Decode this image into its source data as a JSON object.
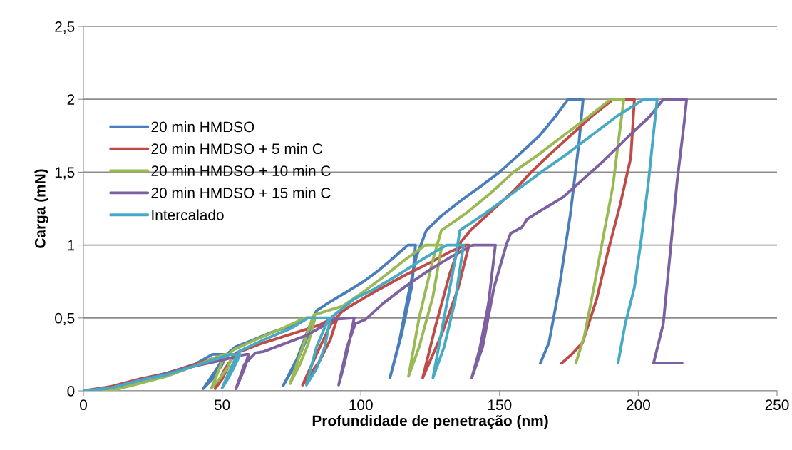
{
  "chart_data": {
    "type": "line",
    "xlabel": "Profundidade de penetração (nm)",
    "ylabel": "Carga (mN)",
    "xlim": [
      0,
      250
    ],
    "xticks": [
      0,
      50,
      100,
      150,
      200,
      250
    ],
    "ylim": [
      0,
      2.5
    ],
    "yticks": [
      0,
      {
        "value": 0.5,
        "label": "0,5"
      },
      1,
      {
        "value": 1.5,
        "label": "1,5"
      },
      2,
      {
        "value": 2.5,
        "label": "2,5"
      }
    ],
    "grid": "y",
    "legend": "left",
    "marker": "none",
    "line_style": "solid",
    "series": [
      {
        "name": "20 min HMDSO",
        "color": "#4a7ebb",
        "x": [
          0,
          10,
          20,
          30,
          40,
          46.5,
          51.6,
          50,
          47,
          43.2,
          47,
          51,
          54.7,
          60,
          67.6,
          74,
          77.8,
          80.4,
          83,
          81,
          77,
          72,
          77,
          81,
          84,
          88,
          95,
          101,
          106,
          111,
          117,
          119.7,
          118.4,
          114.6,
          110.5,
          114,
          117,
          120,
          123.6,
          129,
          135.7,
          143,
          150,
          157,
          164.4,
          170,
          174.7,
          180.1,
          178.6,
          175.5,
          171.6,
          167.8,
          164.7
        ],
        "values": [
          0,
          0.02,
          0.07,
          0.12,
          0.18,
          0.25,
          0.25,
          0.18,
          0.09,
          0.015,
          0.12,
          0.24,
          0.3,
          0.34,
          0.4,
          0.44,
          0.48,
          0.5,
          0.5,
          0.38,
          0.2,
          0.035,
          0.22,
          0.42,
          0.55,
          0.6,
          0.68,
          0.75,
          0.82,
          0.9,
          1,
          1,
          0.72,
          0.38,
          0.09,
          0.35,
          0.65,
          0.92,
          1.1,
          1.2,
          1.3,
          1.4,
          1.5,
          1.62,
          1.75,
          1.88,
          2,
          2,
          1.7,
          1.21,
          0.72,
          0.33,
          0.19
        ]
      },
      {
        "name": "20 min HMDSO + 5 min C",
        "color": "#be4b48",
        "x": [
          0,
          10,
          20,
          30,
          40,
          48,
          52,
          54,
          52,
          50,
          47.5,
          51,
          55,
          58,
          65,
          75,
          85,
          90,
          91.5,
          89,
          85,
          79,
          84,
          89,
          93,
          96,
          105,
          115.6,
          125,
          131.8,
          137.7,
          139,
          135,
          129,
          122.3,
          127,
          132,
          136,
          139.5,
          148,
          155,
          161.4,
          168,
          175.5,
          183,
          190.9,
          198.6,
          197.3,
          193.5,
          189,
          185,
          179.9,
          176,
          172.4
        ],
        "values": [
          0,
          0.03,
          0.08,
          0.12,
          0.18,
          0.23,
          0.25,
          0.25,
          0.16,
          0.08,
          0.015,
          0.15,
          0.26,
          0.28,
          0.33,
          0.39,
          0.45,
          0.5,
          0.5,
          0.35,
          0.2,
          0.04,
          0.25,
          0.45,
          0.54,
          0.58,
          0.68,
          0.79,
          0.88,
          0.95,
          1,
          1,
          0.7,
          0.38,
          0.09,
          0.45,
          0.8,
          1.02,
          1.1,
          1.25,
          1.37,
          1.5,
          1.62,
          1.75,
          1.88,
          2,
          2,
          1.6,
          1.28,
          0.95,
          0.63,
          0.33,
          0.25,
          0.19
        ]
      },
      {
        "name": "20 min HMDSO + 10 min C",
        "color": "#98b954",
        "x": [
          0,
          12,
          20,
          30,
          40,
          48,
          51,
          54,
          52,
          49,
          46.2,
          50,
          54,
          62,
          72,
          80,
          83.5,
          81,
          78,
          74.5,
          79,
          83,
          88,
          93.3,
          101,
          108.7,
          116,
          123.3,
          129.2,
          126,
          121,
          117.2,
          121,
          126,
          129,
          138,
          147,
          155,
          164,
          173,
          182,
          190,
          194.8,
          192.7,
          190.9,
          187.6,
          184,
          180.6,
          177.5
        ],
        "values": [
          0,
          0.01,
          0.05,
          0.1,
          0.17,
          0.23,
          0.25,
          0.25,
          0.16,
          0.08,
          0.02,
          0.2,
          0.28,
          0.35,
          0.43,
          0.5,
          0.5,
          0.32,
          0.18,
          0.05,
          0.3,
          0.52,
          0.55,
          0.58,
          0.68,
          0.79,
          0.9,
          1,
          1,
          0.65,
          0.3,
          0.1,
          0.5,
          0.9,
          1.1,
          1.22,
          1.36,
          1.5,
          1.62,
          1.75,
          1.88,
          2,
          2,
          1.69,
          1.41,
          1.08,
          0.71,
          0.38,
          0.19
        ]
      },
      {
        "name": "20 min HMDSO + 15 min C",
        "color": "#7d60a0",
        "x": [
          0,
          10,
          20,
          30,
          40,
          50,
          56,
          58.6,
          59.5,
          58,
          55,
          58,
          62,
          65,
          72,
          80.4,
          86,
          90,
          97.6,
          96,
          94,
          92,
          95,
          98,
          101.7,
          108,
          115.6,
          124,
          132.6,
          140.3,
          148.5,
          146,
          143,
          140,
          143.9,
          148,
          152.4,
          154,
          158,
          160,
          166,
          173,
          180,
          186.5,
          192,
          197.8,
          204,
          209,
          217.4,
          216.6,
          214,
          211.5,
          209,
          205.5,
          215.8
        ],
        "values": [
          0,
          0.02,
          0.07,
          0.12,
          0.17,
          0.21,
          0.24,
          0.25,
          0.25,
          0.15,
          0.015,
          0.18,
          0.26,
          0.27,
          0.32,
          0.38,
          0.44,
          0.49,
          0.5,
          0.35,
          0.18,
          0.04,
          0.3,
          0.46,
          0.49,
          0.6,
          0.71,
          0.82,
          0.92,
          1,
          1,
          0.6,
          0.3,
          0.09,
          0.3,
          0.71,
          1,
          1.08,
          1.12,
          1.18,
          1.25,
          1.33,
          1.45,
          1.56,
          1.66,
          1.77,
          1.88,
          2,
          2,
          1.85,
          1.44,
          0.95,
          0.46,
          0.19,
          0.19
        ]
      },
      {
        "name": "Intercalado",
        "color": "#46aac5",
        "x": [
          0,
          10,
          20,
          30,
          40,
          48,
          53,
          56.5,
          54,
          52,
          50,
          53,
          56,
          65,
          75,
          81,
          89,
          87,
          84,
          80.4,
          84,
          88,
          91,
          97.6,
          105,
          113,
          122,
          131,
          137,
          134,
          130,
          126,
          130,
          134,
          135.7,
          145,
          155,
          165,
          174,
          183,
          192,
          202,
          206.8,
          205.5,
          203.7,
          201,
          198.6,
          195.3,
          192.7
        ],
        "values": [
          0,
          0.02,
          0.07,
          0.11,
          0.17,
          0.22,
          0.25,
          0.25,
          0.15,
          0.08,
          0.02,
          0.15,
          0.27,
          0.35,
          0.43,
          0.5,
          0.5,
          0.3,
          0.15,
          0.04,
          0.3,
          0.48,
          0.53,
          0.63,
          0.7,
          0.79,
          0.9,
          1,
          1,
          0.62,
          0.3,
          0.09,
          0.5,
          0.9,
          1.1,
          1.22,
          1.36,
          1.5,
          1.62,
          1.75,
          1.88,
          2,
          2,
          1.77,
          1.44,
          1.03,
          0.71,
          0.46,
          0.19
        ]
      }
    ]
  }
}
